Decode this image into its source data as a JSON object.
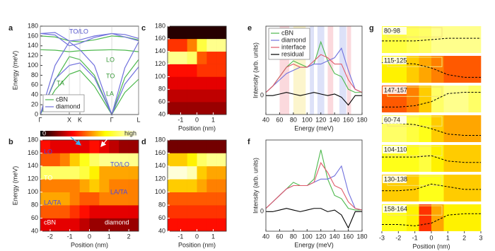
{
  "chart_data": [
    {
      "type": "line",
      "label": "a",
      "ylabel": "Energy (meV)",
      "xlim": [
        0,
        1
      ],
      "xticks": [
        {
          "value": 0,
          "label": "Γ"
        },
        {
          "value": 0.295,
          "label": "X"
        },
        {
          "value": 0.403,
          "label": "K"
        },
        {
          "value": 0.727,
          "label": "Γ"
        },
        {
          "value": 1,
          "label": "L"
        }
      ],
      "ylim": [
        0,
        180
      ],
      "yticks": [
        0,
        20,
        40,
        60,
        80,
        100,
        120,
        140,
        160,
        180
      ],
      "x": [
        0,
        0.15,
        0.295,
        0.403,
        0.55,
        0.727,
        0.86,
        1
      ],
      "series": [
        {
          "name": "cBN",
          "color": "#4cb84c",
          "branches": [
            [
              160,
              158,
              150,
              148,
              152,
              160,
              158,
              152
            ],
            [
              132,
              131,
              128,
              130,
              131,
              132,
              131,
              128
            ],
            [
              0,
              70,
              118,
              112,
              80,
              0,
              75,
              112
            ],
            [
              0,
              50,
              82,
              90,
              58,
              0,
              45,
              72
            ]
          ]
        },
        {
          "name": "diamond",
          "color": "#7070dd",
          "branches": [
            [
              165,
              167,
              150,
              152,
              160,
              165,
              163,
              155
            ],
            [
              165,
              162,
              140,
              145,
              157,
              165,
              158,
              150
            ],
            [
              0,
              100,
              148,
              132,
              100,
              0,
              95,
              148
            ],
            [
              0,
              72,
              100,
              105,
              75,
              0,
              62,
              97
            ]
          ]
        }
      ],
      "legend": "lower left",
      "annotations": [
        {
          "text": "TO/LO",
          "color": "#5555cc"
        },
        {
          "text": "LO",
          "color": "#3a9a3a"
        },
        {
          "text": "TO",
          "color": "#3a9a3a"
        },
        {
          "text": "LA",
          "color": "#3a9a3a"
        },
        {
          "text": "TA",
          "color": "#3a9a3a"
        }
      ]
    },
    {
      "type": "heatmap",
      "label": "b",
      "ylabel": "Energy (meV)",
      "xlabel": "Position (nm)",
      "colormap": "hot",
      "xlim": [
        -2.5,
        2.5
      ],
      "xticks": [
        -2,
        -1,
        0,
        1,
        2
      ],
      "ylim": [
        40,
        180
      ],
      "yticks": [
        40,
        60,
        80,
        100,
        120,
        140,
        160,
        180
      ],
      "x": [
        -2.25,
        -1.75,
        -1.25,
        -0.75,
        -0.25,
        0.25,
        0.75,
        1.25,
        1.75,
        2.25
      ],
      "y": [
        50,
        70,
        90,
        110,
        130,
        150,
        170
      ],
      "z": [
        [
          0.3,
          0.3,
          0.3,
          0.3,
          0.25,
          0.2,
          0.2,
          0.2,
          0.2,
          0.2
        ],
        [
          0.45,
          0.45,
          0.45,
          0.4,
          0.35,
          0.3,
          0.3,
          0.3,
          0.3,
          0.3
        ],
        [
          0.55,
          0.55,
          0.55,
          0.5,
          0.45,
          0.45,
          0.5,
          0.5,
          0.5,
          0.5
        ],
        [
          0.5,
          0.5,
          0.5,
          0.5,
          0.55,
          0.6,
          0.55,
          0.5,
          0.5,
          0.5
        ],
        [
          0.8,
          0.8,
          0.8,
          0.8,
          0.75,
          0.65,
          0.55,
          0.55,
          0.55,
          0.55
        ],
        [
          0.45,
          0.45,
          0.5,
          0.6,
          0.7,
          0.8,
          0.85,
          0.85,
          0.85,
          0.85
        ],
        [
          0.35,
          0.3,
          0.3,
          0.3,
          0.3,
          0.35,
          0.3,
          0.25,
          0.2,
          0.2
        ]
      ],
      "colorbar": {
        "min_label": "0",
        "max_label": "high"
      },
      "annotations": [
        {
          "text": "LO",
          "color": "#4a4ae0"
        },
        {
          "text": "TO",
          "color": "#ffffff"
        },
        {
          "text": "LA/TA",
          "color": "#4a4ae0"
        },
        {
          "text": "TO/LO",
          "color": "#4a4ae0"
        },
        {
          "text": "LA/TA",
          "color": "#4a4ae0"
        },
        {
          "text": "cBN",
          "color": "#ffffff"
        },
        {
          "text": "diamond",
          "color": "#ffffff"
        }
      ]
    },
    {
      "type": "heatmap",
      "label": "c",
      "xlabel": "Position (nm)",
      "colormap": "hot",
      "xlim": [
        -1.8,
        1.8
      ],
      "xticks": [
        -1,
        0,
        1
      ],
      "ylim": [
        40,
        180
      ],
      "yticks": [
        40,
        60,
        80,
        100,
        120,
        140,
        160,
        180
      ],
      "x": [
        -1.5,
        -0.9,
        -0.3,
        0.3,
        0.9,
        1.5
      ],
      "y": [
        50,
        70,
        90,
        110,
        130,
        150,
        170
      ],
      "z": [
        [
          0.2,
          0.2,
          0.2,
          0.2,
          0.2,
          0.2
        ],
        [
          0.25,
          0.25,
          0.25,
          0.25,
          0.25,
          0.25
        ],
        [
          0.3,
          0.3,
          0.3,
          0.3,
          0.3,
          0.3
        ],
        [
          0.35,
          0.35,
          0.35,
          0.4,
          0.4,
          0.4
        ],
        [
          0.85,
          0.85,
          0.8,
          0.45,
          0.4,
          0.4
        ],
        [
          0.4,
          0.4,
          0.5,
          0.75,
          0.85,
          0.85
        ],
        [
          0.05,
          0.05,
          0.05,
          0.05,
          0.05,
          0.05
        ]
      ]
    },
    {
      "type": "heatmap",
      "label": "d",
      "xlabel": "Position (nm)",
      "colormap": "hot",
      "xlim": [
        -1.8,
        1.8
      ],
      "xticks": [
        -1,
        0,
        1
      ],
      "ylim": [
        40,
        180
      ],
      "yticks": [
        40,
        60,
        80,
        100,
        120,
        140,
        160,
        180
      ],
      "x": [
        -1.5,
        -0.9,
        -0.3,
        0.3,
        0.9,
        1.5
      ],
      "y": [
        50,
        70,
        90,
        110,
        130,
        150,
        170
      ],
      "z": [
        [
          0.35,
          0.35,
          0.35,
          0.35,
          0.35,
          0.35
        ],
        [
          0.4,
          0.4,
          0.4,
          0.4,
          0.4,
          0.4
        ],
        [
          0.45,
          0.45,
          0.45,
          0.45,
          0.45,
          0.45
        ],
        [
          0.6,
          0.6,
          0.6,
          0.55,
          0.5,
          0.5
        ],
        [
          0.95,
          0.95,
          0.9,
          0.6,
          0.55,
          0.55
        ],
        [
          0.6,
          0.6,
          0.65,
          0.8,
          0.85,
          0.85
        ],
        [
          0.15,
          0.15,
          0.15,
          0.15,
          0.15,
          0.15
        ]
      ]
    },
    {
      "type": "line",
      "label": "e",
      "xlabel": "Energy (meV)",
      "ylabel": "Intensity (arb. units)",
      "xlim": [
        40,
        180
      ],
      "xticks": [
        40,
        60,
        80,
        100,
        120,
        140,
        160,
        180
      ],
      "ylim": [
        -0.6,
        2.2
      ],
      "yticks": [
        0
      ],
      "x": [
        40,
        50,
        60,
        70,
        80,
        90,
        100,
        110,
        120,
        130,
        140,
        150,
        160,
        170,
        180
      ],
      "series": [
        {
          "name": "cBN",
          "color": "#4cb84c",
          "values": [
            0.1,
            0.3,
            0.6,
            0.9,
            1.1,
            1.0,
            0.9,
            1.0,
            1.7,
            1.1,
            0.7,
            0.6,
            0.2,
            0.1,
            0.1
          ]
        },
        {
          "name": "diamond",
          "color": "#7070dd",
          "values": [
            0.1,
            0.3,
            0.5,
            0.7,
            0.8,
            0.9,
            0.9,
            1.0,
            1.0,
            1.1,
            1.2,
            1.5,
            0.8,
            0.2,
            0.1
          ]
        },
        {
          "name": "interface",
          "color": "#e05a6a",
          "values": [
            0.1,
            0.3,
            0.6,
            0.9,
            1.0,
            0.9,
            0.9,
            1.1,
            1.3,
            1.2,
            1.0,
            1.0,
            0.5,
            0.2,
            0.1
          ]
        },
        {
          "name": "residual",
          "color": "#000000",
          "values": [
            0,
            0,
            0.05,
            0.1,
            0.05,
            0,
            0.05,
            0.1,
            0.05,
            0,
            0.05,
            -0.05,
            -0.3,
            0,
            0
          ]
        }
      ],
      "legend": "upper left",
      "bands": [
        {
          "from": 60,
          "to": 74,
          "color": "#f9c9cf"
        },
        {
          "from": 80,
          "to": 98,
          "color": "#fbf1b8"
        },
        {
          "from": 104,
          "to": 110,
          "color": "#cfd4f5"
        },
        {
          "from": 115,
          "to": 125,
          "color": "#cfd4f5"
        },
        {
          "from": 130,
          "to": 138,
          "color": "#f9c9cf"
        },
        {
          "from": 147,
          "to": 157,
          "color": "#cfd4f5"
        },
        {
          "from": 158,
          "to": 164,
          "color": "#f9c9cf"
        }
      ]
    },
    {
      "type": "line",
      "label": "f",
      "xlabel": "Energy (meV)",
      "ylabel": "Intensity (arb. units)",
      "xlim": [
        40,
        180
      ],
      "xticks": [
        40,
        60,
        80,
        100,
        120,
        140,
        160,
        180
      ],
      "ylim": [
        -0.6,
        2.2
      ],
      "yticks": [
        0
      ],
      "x": [
        40,
        50,
        60,
        70,
        80,
        90,
        100,
        110,
        120,
        130,
        140,
        150,
        160,
        170,
        180
      ],
      "series": [
        {
          "color": "#4cb84c",
          "values": [
            0.1,
            0.3,
            0.5,
            0.7,
            0.9,
            0.8,
            0.8,
            1.0,
            1.9,
            1.0,
            0.5,
            0.4,
            0.1,
            0.05,
            0.05
          ]
        },
        {
          "color": "#7070dd",
          "values": [
            0.1,
            0.3,
            0.5,
            0.7,
            0.8,
            0.8,
            0.8,
            0.9,
            1.0,
            1.0,
            1.1,
            1.4,
            0.6,
            0.1,
            0.05
          ]
        },
        {
          "color": "#e05a6a",
          "values": [
            0.1,
            0.3,
            0.5,
            0.7,
            0.8,
            0.8,
            0.8,
            0.9,
            1.5,
            1.2,
            0.8,
            0.7,
            0.3,
            0.1,
            0.05
          ]
        },
        {
          "color": "#000000",
          "values": [
            0,
            0,
            0.05,
            0.1,
            0.05,
            0,
            0.05,
            0.1,
            0.1,
            0,
            0.05,
            -0.1,
            -0.5,
            0,
            0
          ]
        }
      ]
    },
    {
      "type": "strips",
      "label": "g",
      "xlabel": "Position (nm)",
      "colormap": "hot",
      "xlim": [
        -3,
        3
      ],
      "xticks": [
        -3,
        -2,
        -1,
        0,
        1,
        2,
        3
      ],
      "x": [
        -2.625,
        -1.875,
        -1.125,
        -0.375,
        0.375,
        1.125,
        1.875,
        2.625
      ],
      "profile_x": [
        -3,
        -2,
        -1,
        0,
        1,
        2,
        3
      ],
      "profile_ylim": [
        0,
        1
      ],
      "strips": [
        {
          "name": "80-98",
          "values": [
            0.75,
            0.75,
            0.78,
            0.8,
            0.85,
            0.85,
            0.85,
            0.85
          ],
          "profile": [
            0.45,
            0.45,
            0.45,
            0.5,
            0.55,
            0.55,
            0.55
          ]
        },
        {
          "name": "115-125",
          "values": [
            0.65,
            0.65,
            0.6,
            0.55,
            0.5,
            0.45,
            0.45,
            0.45
          ],
          "profile": [
            0.75,
            0.72,
            0.7,
            0.55,
            0.3,
            0.2,
            0.2
          ]
        },
        {
          "name": "147-157",
          "values": [
            0.45,
            0.45,
            0.5,
            0.6,
            0.8,
            0.85,
            0.85,
            0.8
          ],
          "profile": [
            0.2,
            0.2,
            0.25,
            0.4,
            0.7,
            0.75,
            0.75
          ]
        },
        {
          "name": "60-74",
          "values": [
            0.8,
            0.8,
            0.75,
            0.7,
            0.6,
            0.55,
            0.55,
            0.55
          ],
          "profile": [
            0.7,
            0.7,
            0.65,
            0.5,
            0.3,
            0.25,
            0.25
          ]
        },
        {
          "name": "104-110",
          "values": [
            0.7,
            0.7,
            0.7,
            0.75,
            0.65,
            0.6,
            0.6,
            0.6
          ],
          "profile": [
            0.55,
            0.55,
            0.55,
            0.6,
            0.4,
            0.35,
            0.35
          ]
        },
        {
          "name": "130-138",
          "values": [
            0.6,
            0.6,
            0.6,
            0.7,
            0.7,
            0.6,
            0.6,
            0.6
          ],
          "profile": [
            0.4,
            0.4,
            0.45,
            0.65,
            0.55,
            0.45,
            0.45
          ]
        },
        {
          "name": "158-164",
          "values": [
            0.7,
            0.7,
            0.65,
            0.4,
            0.55,
            0.65,
            0.65,
            0.65
          ],
          "profile": [
            0.25,
            0.25,
            0.2,
            0.3,
            0.6,
            0.65,
            0.65
          ]
        }
      ]
    }
  ]
}
